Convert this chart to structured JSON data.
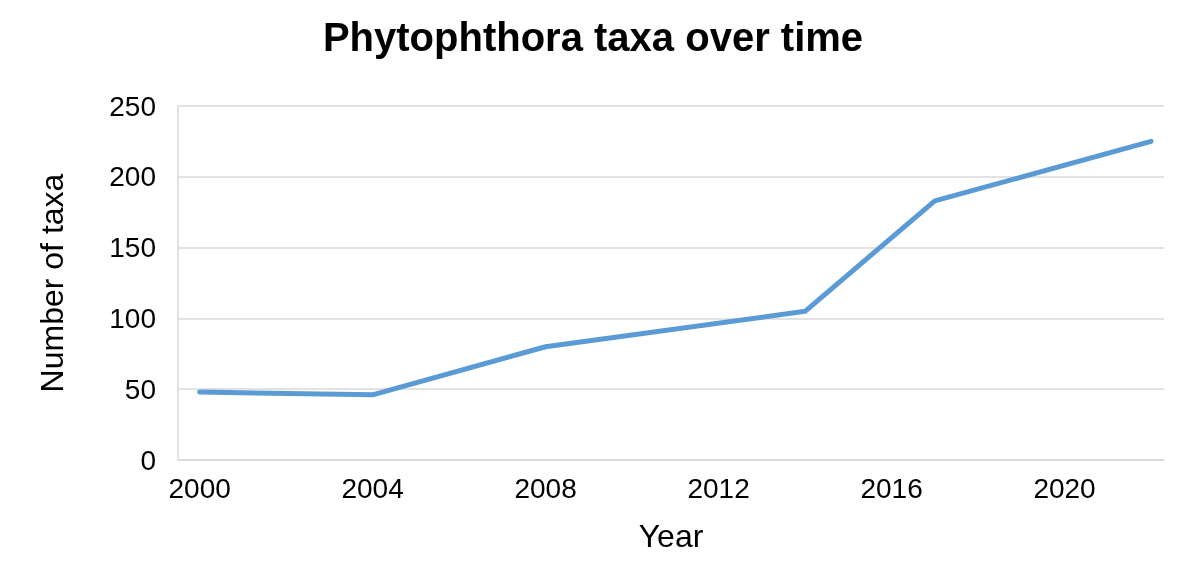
{
  "chart_data": {
    "type": "line",
    "title": "Phytophthora taxa over time",
    "xlabel": "Year",
    "ylabel": "Number of taxa",
    "x": [
      2000,
      2004,
      2008,
      2014,
      2017,
      2022
    ],
    "series": [
      {
        "color": "#5b9bd5",
        "values": [
          48,
          46,
          80,
          105,
          183,
          225
        ]
      }
    ],
    "xlim": [
      1999.5,
      2022.3
    ],
    "xticks": [
      2000,
      2004,
      2008,
      2012,
      2016,
      2020
    ],
    "ylim": [
      0,
      250
    ],
    "yticks": [
      0,
      50,
      100,
      150,
      200,
      250
    ],
    "grid": "y",
    "marker": "none",
    "line_style": "solid"
  }
}
